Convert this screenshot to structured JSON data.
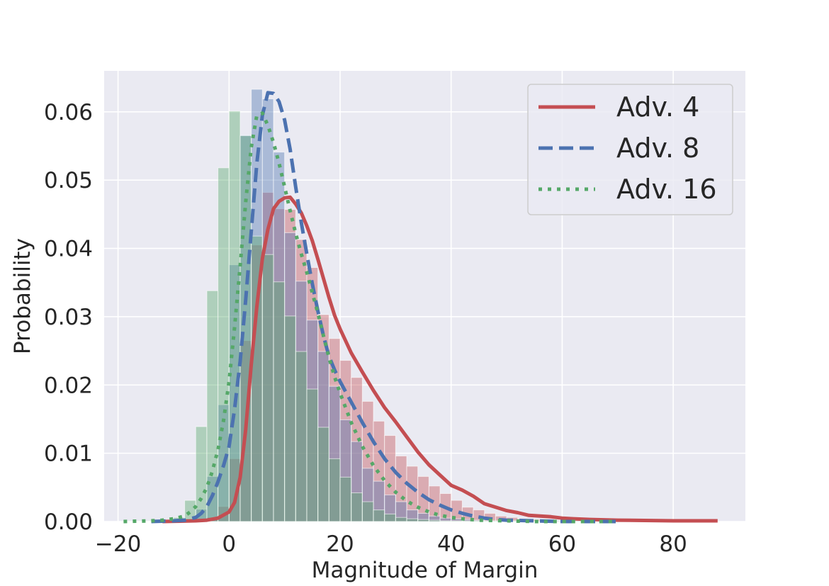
{
  "chart_data": {
    "type": "histogram",
    "title": "",
    "xlabel": "Magnitude of Margin",
    "ylabel": "Probability",
    "xlim": [
      -22.5,
      93
    ],
    "ylim": [
      0,
      0.066
    ],
    "xticks": [
      -20,
      0,
      20,
      40,
      60,
      80
    ],
    "xtick_labels": [
      "−20",
      "0",
      "20",
      "40",
      "60",
      "80"
    ],
    "yticks": [
      0,
      0.01,
      0.02,
      0.03,
      0.04,
      0.05,
      0.06
    ],
    "ytick_labels": [
      "0.00",
      "0.01",
      "0.02",
      "0.03",
      "0.04",
      "0.05",
      "0.06"
    ],
    "grid": true,
    "legend_position": "top-right",
    "bin_width": 2,
    "series": [
      {
        "name": "Adv. 4",
        "color": "#c44e52",
        "line_style": "solid",
        "hist_start": -6,
        "hist_values": [
          0.0001,
          0.0006,
          0.0022,
          0.0092,
          0.0265,
          0.0405,
          0.0482,
          0.0458,
          0.0457,
          0.0413,
          0.0372,
          0.0303,
          0.0268,
          0.0236,
          0.0211,
          0.0176,
          0.0147,
          0.0126,
          0.0096,
          0.0081,
          0.0066,
          0.0052,
          0.0041,
          0.0031,
          0.0021,
          0.0017,
          0.0012,
          0.0008,
          0.0006,
          0.0004,
          0.0003,
          0.0002,
          0.0001,
          0.0001,
          0.0001,
          0.0001,
          0.0001,
          0.0001,
          0.0001,
          0.0001,
          0.0001,
          0.0001,
          0.0001,
          0.0001,
          0.0001,
          0.0001,
          0.0001
        ],
        "kde": [
          [
            -12,
            0
          ],
          [
            -6,
            0.0001
          ],
          [
            -4,
            0.0002
          ],
          [
            -2,
            0.0005
          ],
          [
            0,
            0.0014
          ],
          [
            1,
            0.0028
          ],
          [
            2,
            0.0065
          ],
          [
            3,
            0.0135
          ],
          [
            4,
            0.023
          ],
          [
            5,
            0.0315
          ],
          [
            6,
            0.0385
          ],
          [
            7,
            0.0428
          ],
          [
            8,
            0.0458
          ],
          [
            9,
            0.0469
          ],
          [
            10,
            0.0474
          ],
          [
            11,
            0.0475
          ],
          [
            12,
            0.0465
          ],
          [
            13,
            0.0452
          ],
          [
            14,
            0.0433
          ],
          [
            15,
            0.0411
          ],
          [
            16,
            0.0384
          ],
          [
            17,
            0.0356
          ],
          [
            18,
            0.0328
          ],
          [
            19,
            0.0302
          ],
          [
            20,
            0.0282
          ],
          [
            22,
            0.0247
          ],
          [
            24,
            0.0219
          ],
          [
            26,
            0.0192
          ],
          [
            28,
            0.0167
          ],
          [
            30,
            0.0146
          ],
          [
            32,
            0.0124
          ],
          [
            34,
            0.0102
          ],
          [
            36,
            0.0083
          ],
          [
            38,
            0.0068
          ],
          [
            40,
            0.0053
          ],
          [
            42,
            0.0046
          ],
          [
            44,
            0.0037
          ],
          [
            46,
            0.0026
          ],
          [
            48,
            0.0021
          ],
          [
            50,
            0.0016
          ],
          [
            52,
            0.0013
          ],
          [
            54,
            0.0009
          ],
          [
            56,
            0.0008
          ],
          [
            58,
            0.0007
          ],
          [
            60,
            0.0005
          ],
          [
            62,
            0.0004
          ],
          [
            65,
            0.0003
          ],
          [
            70,
            0.0002
          ],
          [
            80,
            0.0001
          ],
          [
            88,
            0.0001
          ]
        ]
      },
      {
        "name": "Adv. 8",
        "color": "#4c72b0",
        "line_style": "dashed",
        "hist_start": -10,
        "hist_values": [
          0.0001,
          0.0004,
          0.0018,
          0.0066,
          0.0171,
          0.0376,
          0.0566,
          0.0633,
          0.0619,
          0.0541,
          0.0423,
          0.0352,
          0.0295,
          0.0249,
          0.0198,
          0.0149,
          0.0117,
          0.0078,
          0.0059,
          0.0039,
          0.0029,
          0.0017,
          0.0012,
          0.0008,
          0.0005,
          0.0004,
          0.0003,
          0.0002,
          0.0001,
          0.0001,
          0.0001,
          0.0001,
          0.0001,
          0.0001,
          0.0001,
          0.0001,
          0.0001,
          0.0001,
          0.0001
        ],
        "kde": [
          [
            -14,
            0
          ],
          [
            -10,
            0.0001
          ],
          [
            -8,
            0.0002
          ],
          [
            -6,
            0.0006
          ],
          [
            -5,
            0.0012
          ],
          [
            -4,
            0.0022
          ],
          [
            -3,
            0.0038
          ],
          [
            -2,
            0.0058
          ],
          [
            -1,
            0.0082
          ],
          [
            0,
            0.011
          ],
          [
            1,
            0.0165
          ],
          [
            2,
            0.0235
          ],
          [
            3,
            0.0325
          ],
          [
            4,
            0.0425
          ],
          [
            5,
            0.0525
          ],
          [
            6,
            0.0595
          ],
          [
            7,
            0.0628
          ],
          [
            8,
            0.0627
          ],
          [
            9,
            0.0615
          ],
          [
            10,
            0.0588
          ],
          [
            11,
            0.0545
          ],
          [
            12,
            0.049
          ],
          [
            13,
            0.0438
          ],
          [
            14,
            0.0392
          ],
          [
            15,
            0.0348
          ],
          [
            16,
            0.0308
          ],
          [
            17,
            0.0272
          ],
          [
            18,
            0.0242
          ],
          [
            19,
            0.0222
          ],
          [
            20,
            0.0205
          ],
          [
            22,
            0.0175
          ],
          [
            24,
            0.0145
          ],
          [
            26,
            0.0117
          ],
          [
            28,
            0.0092
          ],
          [
            30,
            0.0072
          ],
          [
            32,
            0.0056
          ],
          [
            34,
            0.0043
          ],
          [
            36,
            0.0032
          ],
          [
            38,
            0.0024
          ],
          [
            40,
            0.0017
          ],
          [
            42,
            0.0012
          ],
          [
            44,
            0.0008
          ],
          [
            46,
            0.0005
          ],
          [
            48,
            0.0003
          ],
          [
            50,
            0.0002
          ],
          [
            55,
            0.0001
          ],
          [
            60,
            0
          ],
          [
            70,
            0
          ]
        ]
      },
      {
        "name": "Adv. 16",
        "color": "#55a868",
        "line_style": "dotted",
        "hist_start": -12,
        "hist_values": [
          0.0001,
          0.0006,
          0.0031,
          0.0139,
          0.0338,
          0.0518,
          0.0601,
          0.0565,
          0.0418,
          0.0391,
          0.0351,
          0.0301,
          0.0249,
          0.0194,
          0.0138,
          0.0092,
          0.0065,
          0.0042,
          0.0029,
          0.0017,
          0.0011,
          0.0006,
          0.0004,
          0.0003,
          0.0002,
          0.0001,
          0.0001,
          0.0001,
          0.0001,
          0.0001,
          0.0001,
          0.0001,
          0.0001,
          0.0001
        ],
        "kde": [
          [
            -19,
            0
          ],
          [
            -14,
            0.0001
          ],
          [
            -12,
            0.0002
          ],
          [
            -10,
            0.0004
          ],
          [
            -8,
            0.0008
          ],
          [
            -7,
            0.0014
          ],
          [
            -6,
            0.0022
          ],
          [
            -5,
            0.0034
          ],
          [
            -4,
            0.005
          ],
          [
            -3,
            0.0074
          ],
          [
            -2,
            0.0105
          ],
          [
            -1,
            0.0148
          ],
          [
            0,
            0.0205
          ],
          [
            1,
            0.0285
          ],
          [
            2,
            0.0375
          ],
          [
            3,
            0.0468
          ],
          [
            4,
            0.0548
          ],
          [
            5,
            0.0595
          ],
          [
            6,
            0.0598
          ],
          [
            7,
            0.058
          ],
          [
            8,
            0.0555
          ],
          [
            9,
            0.0525
          ],
          [
            10,
            0.049
          ],
          [
            11,
            0.0455
          ],
          [
            12,
            0.0422
          ],
          [
            13,
            0.0392
          ],
          [
            14,
            0.0365
          ],
          [
            15,
            0.0335
          ],
          [
            16,
            0.0305
          ],
          [
            17,
            0.0272
          ],
          [
            18,
            0.024
          ],
          [
            19,
            0.0212
          ],
          [
            20,
            0.0188
          ],
          [
            22,
            0.0145
          ],
          [
            24,
            0.011
          ],
          [
            26,
            0.0082
          ],
          [
            28,
            0.006
          ],
          [
            30,
            0.0043
          ],
          [
            32,
            0.003
          ],
          [
            34,
            0.0021
          ],
          [
            36,
            0.0014
          ],
          [
            38,
            0.0009
          ],
          [
            40,
            0.0006
          ],
          [
            42,
            0.0004
          ],
          [
            45,
            0.0002
          ],
          [
            50,
            0.0001
          ],
          [
            55,
            0
          ],
          [
            70,
            0
          ]
        ]
      }
    ]
  }
}
